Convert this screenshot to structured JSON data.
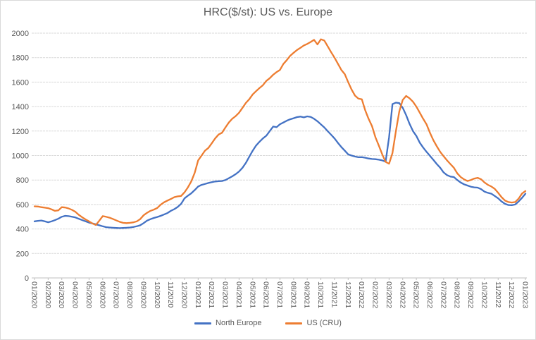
{
  "chart": {
    "title": "HRC($/st): US vs. Europe"
  },
  "chart_data": {
    "type": "line",
    "title": "HRC($/st): US vs. Europe",
    "grid": "horizontal-dashed",
    "legend_position": "bottom",
    "points_per_month": 4,
    "y_axis": {
      "min": 0,
      "max": 2000,
      "tick_step": 200,
      "ticks": [
        0,
        200,
        400,
        600,
        800,
        1000,
        1200,
        1400,
        1600,
        1800,
        2000
      ]
    },
    "x_labels": [
      "01/2020",
      "02/2020",
      "03/2020",
      "04/2020",
      "05/2020",
      "06/2020",
      "07/2020",
      "08/2020",
      "09/2020",
      "10/2020",
      "11/2020",
      "12/2020",
      "01/2021",
      "02/2021",
      "03/2021",
      "04/2021",
      "05/2021",
      "06/2021",
      "07/2021",
      "08/2021",
      "09/2021",
      "10/2021",
      "11/2021",
      "12/2021",
      "01/2022",
      "02/2022",
      "03/2022",
      "04/2022",
      "05/2022",
      "06/2022",
      "07/2022",
      "08/2022",
      "09/2022",
      "10/2022",
      "11/2022",
      "12/2022",
      "01/2023"
    ],
    "colors": {
      "north_europe": "#4472C4",
      "us_cru": "#ED7D31",
      "gridline": "#D9D9D9",
      "axis": "#BFBFBF",
      "text": "#595959"
    },
    "series": [
      {
        "name": "North Europe",
        "color": "#4472C4",
        "values": [
          462,
          466,
          469,
          462,
          455,
          462,
          472,
          484,
          500,
          507,
          505,
          500,
          494,
          483,
          472,
          462,
          452,
          445,
          438,
          430,
          422,
          415,
          412,
          410,
          408,
          407,
          408,
          410,
          412,
          416,
          422,
          430,
          448,
          468,
          480,
          490,
          498,
          507,
          518,
          530,
          548,
          562,
          580,
          605,
          650,
          672,
          692,
          718,
          747,
          760,
          768,
          776,
          782,
          788,
          790,
          792,
          800,
          815,
          830,
          848,
          870,
          900,
          940,
          990,
          1040,
          1082,
          1113,
          1140,
          1162,
          1200,
          1237,
          1232,
          1256,
          1270,
          1285,
          1296,
          1305,
          1314,
          1318,
          1312,
          1320,
          1315,
          1300,
          1280,
          1255,
          1230,
          1199,
          1170,
          1140,
          1103,
          1070,
          1040,
          1010,
          1000,
          992,
          986,
          987,
          982,
          976,
          972,
          970,
          966,
          960,
          950,
          1150,
          1420,
          1432,
          1428,
          1390,
          1330,
          1260,
          1200,
          1160,
          1105,
          1065,
          1030,
          997,
          965,
          930,
          900,
          862,
          840,
          828,
          824,
          800,
          780,
          765,
          755,
          745,
          740,
          738,
          725,
          705,
          695,
          688,
          670,
          650,
          625,
          605,
          596,
          594,
          600,
          625,
          655,
          688
        ]
      },
      {
        "name": "US (CRU)",
        "color": "#ED7D31",
        "values": [
          585,
          583,
          578,
          574,
          570,
          560,
          548,
          552,
          578,
          575,
          568,
          556,
          540,
          515,
          495,
          478,
          462,
          445,
          432,
          468,
          505,
          500,
          492,
          482,
          470,
          458,
          450,
          448,
          450,
          454,
          462,
          480,
          512,
          532,
          548,
          558,
          572,
          598,
          618,
          632,
          645,
          660,
          666,
          670,
          700,
          740,
          790,
          860,
          960,
          1000,
          1040,
          1062,
          1100,
          1140,
          1172,
          1186,
          1230,
          1270,
          1300,
          1322,
          1350,
          1390,
          1430,
          1460,
          1500,
          1526,
          1552,
          1575,
          1610,
          1632,
          1660,
          1682,
          1700,
          1748,
          1780,
          1815,
          1840,
          1862,
          1880,
          1900,
          1912,
          1928,
          1945,
          1908,
          1950,
          1940,
          1892,
          1845,
          1800,
          1750,
          1700,
          1665,
          1600,
          1540,
          1490,
          1465,
          1460,
          1370,
          1300,
          1240,
          1150,
          1080,
          1010,
          948,
          933,
          1020,
          1200,
          1360,
          1455,
          1487,
          1468,
          1440,
          1400,
          1350,
          1300,
          1255,
          1185,
          1125,
          1075,
          1030,
          995,
          960,
          930,
          900,
          855,
          825,
          805,
          792,
          800,
          812,
          818,
          806,
          780,
          760,
          747,
          728,
          695,
          660,
          632,
          620,
          616,
          620,
          648,
          690,
          710
        ]
      }
    ]
  }
}
